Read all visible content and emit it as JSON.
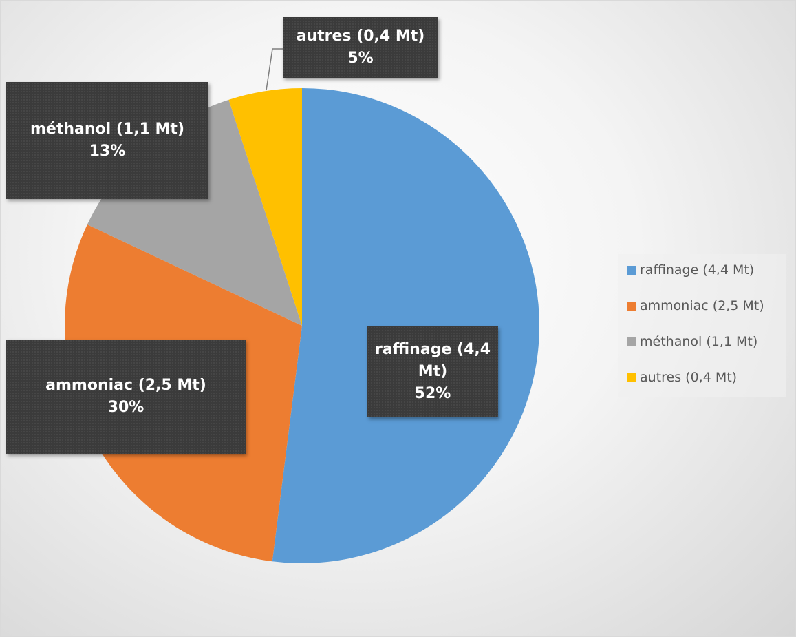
{
  "chart_data": {
    "type": "pie",
    "categories": [
      "raffinage (4,4 Mt)",
      "ammoniac (2,5 Mt)",
      "méthanol (1,1 Mt)",
      "autres (0,4 Mt)"
    ],
    "values": [
      52,
      30,
      13,
      5
    ],
    "value_labels": [
      "52%",
      "30%",
      "13%",
      "5%"
    ],
    "colors": [
      "#5b9bd5",
      "#ed7d31",
      "#a5a5a5",
      "#ffc000"
    ],
    "legend": "right"
  }
}
